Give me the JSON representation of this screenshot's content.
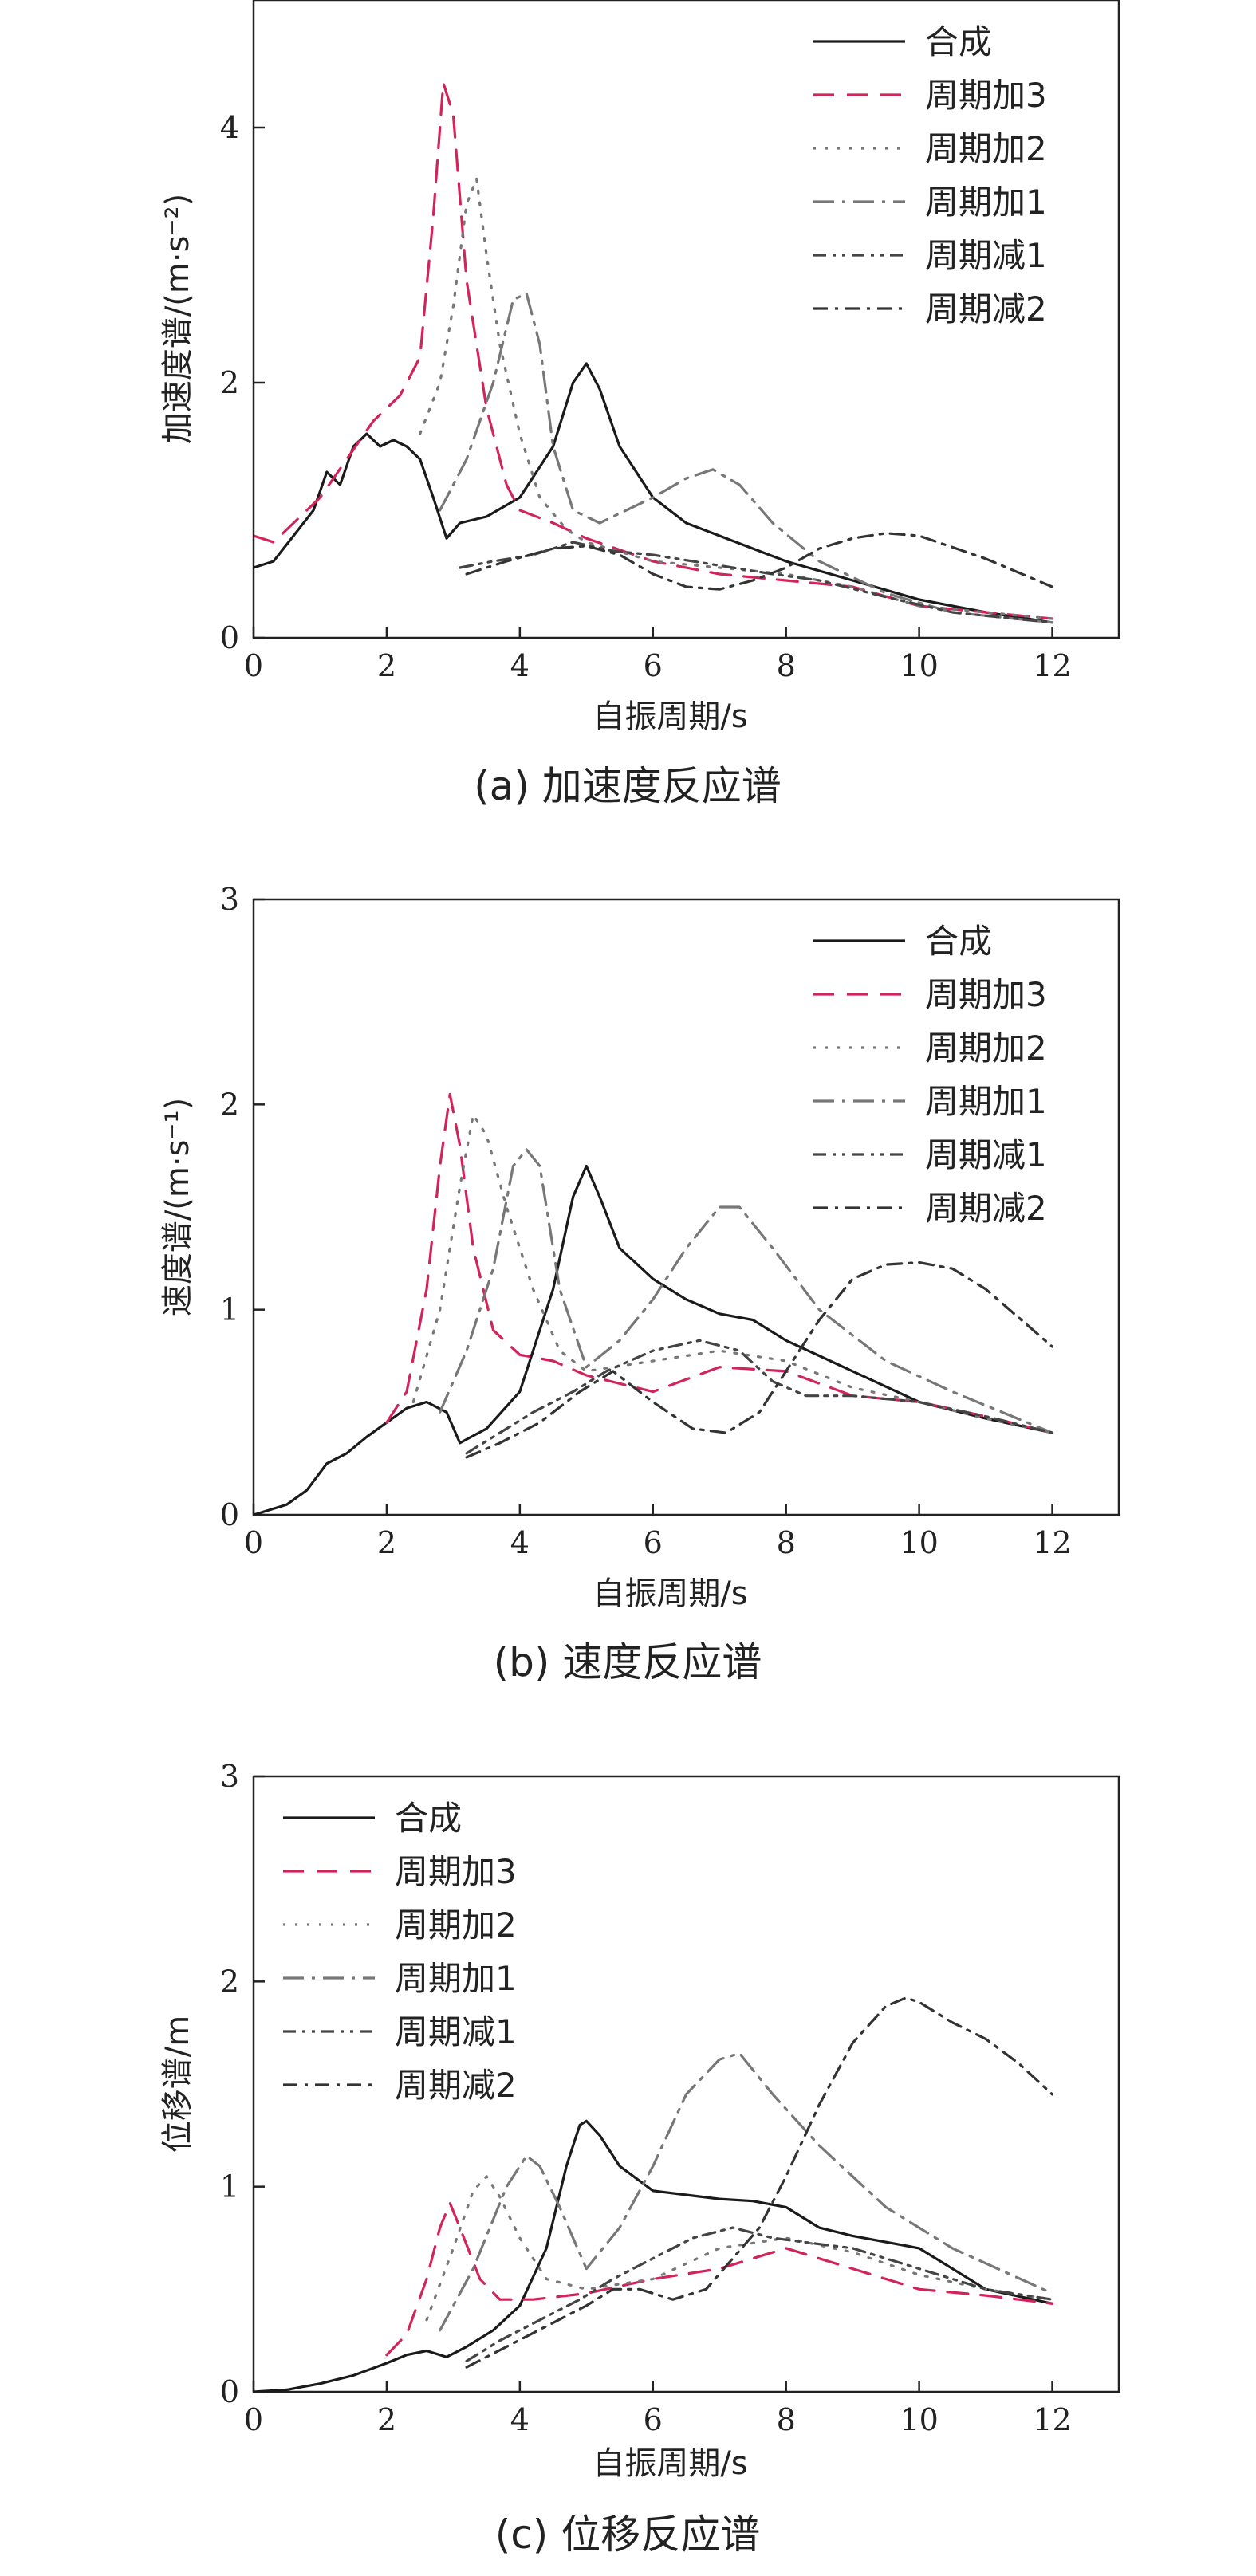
{
  "x_label": "自振周期/s",
  "colors": {
    "合成": "#1a1a1a",
    "周期加3": "#d0245a",
    "周期加2": "#777777",
    "周期加1": "#777777",
    "周期减1": "#444444",
    "周期减2": "#333333"
  },
  "styles": {
    "合成": "solid",
    "周期加3": "long-dash",
    "周期加2": "dotted",
    "周期加1": "long-dash-dot",
    "周期减1": "dash-dot-dot",
    "周期减2": "dash-dot"
  },
  "chart_data": [
    {
      "type": "line",
      "caption": "(a) 加速度反应谱",
      "xlabel": "自振周期/s",
      "ylabel": "加速度谱/(m·s⁻²)",
      "xlim": [
        0,
        13
      ],
      "ylim": [
        0,
        5
      ],
      "xticks": [
        "0",
        "2",
        "4",
        "6",
        "8",
        "10",
        "12"
      ],
      "yticks": [
        "0",
        "2",
        "4"
      ],
      "legend_position": "top-right",
      "series": [
        {
          "name": "合成",
          "x": [
            0,
            0.3,
            0.6,
            0.9,
            1.1,
            1.3,
            1.5,
            1.7,
            1.9,
            2.1,
            2.3,
            2.5,
            2.7,
            2.9,
            3.1,
            3.5,
            4.0,
            4.5,
            4.8,
            5.0,
            5.2,
            5.5,
            6.0,
            6.5,
            7.0,
            8.0,
            9.0,
            10.0,
            11.0,
            12.0
          ],
          "y": [
            0.55,
            0.6,
            0.8,
            1.0,
            1.3,
            1.2,
            1.5,
            1.6,
            1.5,
            1.55,
            1.5,
            1.4,
            1.1,
            0.78,
            0.9,
            0.95,
            1.1,
            1.5,
            2.0,
            2.15,
            1.95,
            1.5,
            1.1,
            0.9,
            0.8,
            0.6,
            0.45,
            0.3,
            0.2,
            0.12
          ]
        },
        {
          "name": "周期加3",
          "x": [
            0,
            0.3,
            0.6,
            1.0,
            1.4,
            1.8,
            2.2,
            2.5,
            2.7,
            2.85,
            3.0,
            3.2,
            3.5,
            3.8,
            4.0,
            4.5,
            5.0,
            6.0,
            7.0,
            8.0,
            9.0,
            10.0,
            11.0,
            12.0
          ],
          "y": [
            0.8,
            0.75,
            0.9,
            1.1,
            1.4,
            1.7,
            1.9,
            2.2,
            3.3,
            4.35,
            4.1,
            2.8,
            1.8,
            1.2,
            1.0,
            0.9,
            0.78,
            0.6,
            0.5,
            0.45,
            0.4,
            0.25,
            0.2,
            0.15
          ]
        },
        {
          "name": "周期加2",
          "x": [
            2.5,
            2.8,
            3.0,
            3.2,
            3.35,
            3.5,
            3.7,
            4.0,
            4.3,
            4.7,
            5.0,
            6.0,
            7.0,
            8.0,
            9.0,
            10.0,
            11.0,
            12.0
          ],
          "y": [
            1.6,
            2.0,
            2.6,
            3.4,
            3.6,
            3.0,
            2.3,
            1.6,
            1.1,
            0.85,
            0.75,
            0.6,
            0.55,
            0.5,
            0.4,
            0.25,
            0.2,
            0.15
          ]
        },
        {
          "name": "周期加1",
          "x": [
            2.8,
            3.2,
            3.6,
            3.9,
            4.1,
            4.3,
            4.5,
            4.8,
            5.2,
            5.6,
            6.0,
            6.5,
            6.9,
            7.3,
            7.8,
            8.5,
            9.5,
            10.5,
            12.0
          ],
          "y": [
            1.0,
            1.4,
            2.0,
            2.65,
            2.7,
            2.3,
            1.5,
            1.0,
            0.9,
            1.0,
            1.1,
            1.25,
            1.32,
            1.2,
            0.9,
            0.6,
            0.35,
            0.2,
            0.12
          ]
        },
        {
          "name": "周期减1",
          "x": [
            3.1,
            3.6,
            4.2,
            4.8,
            5.4,
            6.0,
            6.6,
            7.2,
            7.8,
            8.5,
            9.5,
            10.5,
            12.0
          ],
          "y": [
            0.55,
            0.6,
            0.65,
            0.75,
            0.68,
            0.65,
            0.6,
            0.55,
            0.5,
            0.45,
            0.32,
            0.2,
            0.12
          ]
        },
        {
          "name": "周期减2",
          "x": [
            3.2,
            3.8,
            4.5,
            5.0,
            5.5,
            6.0,
            6.5,
            7.0,
            7.5,
            8.0,
            8.5,
            9.0,
            9.5,
            10.0,
            11.0,
            12.0
          ],
          "y": [
            0.5,
            0.6,
            0.7,
            0.72,
            0.65,
            0.5,
            0.4,
            0.38,
            0.45,
            0.55,
            0.7,
            0.78,
            0.82,
            0.8,
            0.62,
            0.4
          ]
        }
      ]
    },
    {
      "type": "line",
      "caption": "(b) 速度反应谱",
      "xlabel": "自振周期/s",
      "ylabel": "速度谱/(m·s⁻¹)",
      "xlim": [
        0,
        13
      ],
      "ylim": [
        0,
        3
      ],
      "xticks": [
        "0",
        "2",
        "4",
        "6",
        "8",
        "10",
        "12"
      ],
      "yticks": [
        "0",
        "1",
        "2",
        "3"
      ],
      "legend_position": "top-right",
      "series": [
        {
          "name": "合成",
          "x": [
            0,
            0.5,
            0.8,
            1.1,
            1.4,
            1.7,
            2.0,
            2.3,
            2.6,
            2.9,
            3.1,
            3.5,
            4.0,
            4.5,
            4.8,
            5.0,
            5.2,
            5.5,
            6.0,
            6.5,
            7.0,
            7.5,
            8.0,
            9.0,
            10.0,
            11.0,
            12.0
          ],
          "y": [
            0,
            0.05,
            0.12,
            0.25,
            0.3,
            0.38,
            0.45,
            0.52,
            0.55,
            0.5,
            0.35,
            0.42,
            0.6,
            1.1,
            1.55,
            1.7,
            1.55,
            1.3,
            1.15,
            1.05,
            0.98,
            0.95,
            0.85,
            0.7,
            0.55,
            0.47,
            0.4
          ]
        },
        {
          "name": "周期加3",
          "x": [
            2.0,
            2.3,
            2.6,
            2.8,
            2.95,
            3.1,
            3.3,
            3.6,
            4.0,
            4.5,
            5.0,
            6.0,
            7.0,
            8.0,
            9.0,
            10.0,
            11.0,
            12.0
          ],
          "y": [
            0.45,
            0.6,
            1.1,
            1.7,
            2.05,
            1.8,
            1.3,
            0.9,
            0.78,
            0.75,
            0.68,
            0.6,
            0.72,
            0.7,
            0.58,
            0.55,
            0.48,
            0.4
          ]
        },
        {
          "name": "周期加2",
          "x": [
            2.4,
            2.8,
            3.1,
            3.3,
            3.5,
            3.8,
            4.2,
            4.6,
            5.0,
            6.0,
            7.0,
            8.0,
            9.0,
            10.0,
            11.0,
            12.0
          ],
          "y": [
            0.55,
            1.0,
            1.6,
            1.95,
            1.85,
            1.5,
            1.1,
            0.8,
            0.7,
            0.75,
            0.8,
            0.75,
            0.62,
            0.55,
            0.47,
            0.4
          ]
        },
        {
          "name": "周期加1",
          "x": [
            2.8,
            3.2,
            3.6,
            3.9,
            4.1,
            4.3,
            4.6,
            5.0,
            5.5,
            6.0,
            6.5,
            7.0,
            7.3,
            7.8,
            8.5,
            9.5,
            10.5,
            12.0
          ],
          "y": [
            0.5,
            0.8,
            1.2,
            1.7,
            1.78,
            1.7,
            1.1,
            0.72,
            0.85,
            1.05,
            1.3,
            1.5,
            1.5,
            1.3,
            1.0,
            0.75,
            0.6,
            0.4
          ]
        },
        {
          "name": "周期减1",
          "x": [
            3.2,
            3.7,
            4.2,
            4.8,
            5.3,
            6.0,
            6.7,
            7.3,
            7.8,
            8.3,
            9.0,
            10.0,
            11.0,
            12.0
          ],
          "y": [
            0.3,
            0.4,
            0.5,
            0.6,
            0.7,
            0.8,
            0.85,
            0.8,
            0.65,
            0.58,
            0.58,
            0.55,
            0.48,
            0.4
          ]
        },
        {
          "name": "周期减2",
          "x": [
            3.2,
            3.7,
            4.3,
            4.9,
            5.4,
            6.0,
            6.6,
            7.1,
            7.6,
            8.0,
            8.5,
            9.0,
            9.5,
            10.0,
            10.5,
            11.0,
            12.0
          ],
          "y": [
            0.28,
            0.35,
            0.45,
            0.6,
            0.7,
            0.55,
            0.42,
            0.4,
            0.5,
            0.7,
            0.95,
            1.15,
            1.22,
            1.23,
            1.2,
            1.1,
            0.82
          ]
        }
      ]
    },
    {
      "type": "line",
      "caption": "(c) 位移反应谱",
      "xlabel": "自振周期/s",
      "ylabel": "位移谱/m",
      "xlim": [
        0,
        13
      ],
      "ylim": [
        0,
        3
      ],
      "xticks": [
        "0",
        "2",
        "4",
        "6",
        "8",
        "10",
        "12"
      ],
      "yticks": [
        "0",
        "1",
        "2",
        "3"
      ],
      "legend_position": "top-left",
      "series": [
        {
          "name": "合成",
          "x": [
            0,
            0.5,
            1.0,
            1.5,
            2.0,
            2.3,
            2.6,
            2.9,
            3.2,
            3.6,
            4.0,
            4.4,
            4.7,
            4.9,
            5.0,
            5.2,
            5.5,
            6.0,
            6.5,
            7.0,
            7.5,
            8.0,
            8.5,
            9.0,
            10.0,
            11.0,
            12.0
          ],
          "y": [
            0,
            0.01,
            0.04,
            0.08,
            0.14,
            0.18,
            0.2,
            0.17,
            0.22,
            0.3,
            0.42,
            0.7,
            1.1,
            1.3,
            1.32,
            1.25,
            1.1,
            0.98,
            0.96,
            0.94,
            0.93,
            0.9,
            0.8,
            0.76,
            0.7,
            0.5,
            0.43
          ]
        },
        {
          "name": "周期加3",
          "x": [
            2.0,
            2.3,
            2.6,
            2.8,
            2.95,
            3.1,
            3.4,
            3.7,
            4.2,
            5.0,
            6.0,
            7.0,
            8.0,
            9.0,
            10.0,
            11.0,
            12.0
          ],
          "y": [
            0.18,
            0.28,
            0.55,
            0.8,
            0.92,
            0.8,
            0.55,
            0.45,
            0.45,
            0.48,
            0.55,
            0.6,
            0.7,
            0.6,
            0.5,
            0.47,
            0.43
          ]
        },
        {
          "name": "周期加2",
          "x": [
            2.6,
            3.0,
            3.3,
            3.5,
            3.7,
            4.0,
            4.4,
            5.0,
            6.0,
            7.0,
            8.0,
            9.0,
            10.0,
            11.0,
            12.0
          ],
          "y": [
            0.35,
            0.7,
            0.98,
            1.05,
            0.95,
            0.75,
            0.55,
            0.5,
            0.55,
            0.7,
            0.75,
            0.68,
            0.57,
            0.5,
            0.45
          ]
        },
        {
          "name": "周期加1",
          "x": [
            2.8,
            3.3,
            3.8,
            4.1,
            4.3,
            4.6,
            5.0,
            5.5,
            6.0,
            6.5,
            7.0,
            7.3,
            7.8,
            8.5,
            9.5,
            10.5,
            12.0
          ],
          "y": [
            0.3,
            0.6,
            1.0,
            1.15,
            1.1,
            0.9,
            0.6,
            0.8,
            1.1,
            1.45,
            1.62,
            1.65,
            1.45,
            1.2,
            0.9,
            0.7,
            0.48
          ]
        },
        {
          "name": "周期减1",
          "x": [
            3.2,
            3.7,
            4.3,
            4.9,
            5.4,
            6.0,
            6.6,
            7.2,
            7.8,
            8.5,
            9.0,
            10.0,
            11.0,
            12.0
          ],
          "y": [
            0.15,
            0.25,
            0.35,
            0.45,
            0.55,
            0.65,
            0.75,
            0.8,
            0.75,
            0.72,
            0.7,
            0.6,
            0.5,
            0.45
          ]
        },
        {
          "name": "周期减2",
          "x": [
            3.2,
            3.8,
            4.4,
            5.0,
            5.4,
            5.8,
            6.3,
            6.8,
            7.2,
            7.6,
            8.0,
            8.5,
            9.0,
            9.5,
            9.8,
            10.0,
            10.5,
            11.0,
            11.5,
            12.0
          ],
          "y": [
            0.12,
            0.22,
            0.32,
            0.42,
            0.5,
            0.5,
            0.45,
            0.5,
            0.65,
            0.8,
            1.05,
            1.4,
            1.7,
            1.88,
            1.92,
            1.9,
            1.8,
            1.72,
            1.6,
            1.45
          ]
        }
      ]
    }
  ]
}
